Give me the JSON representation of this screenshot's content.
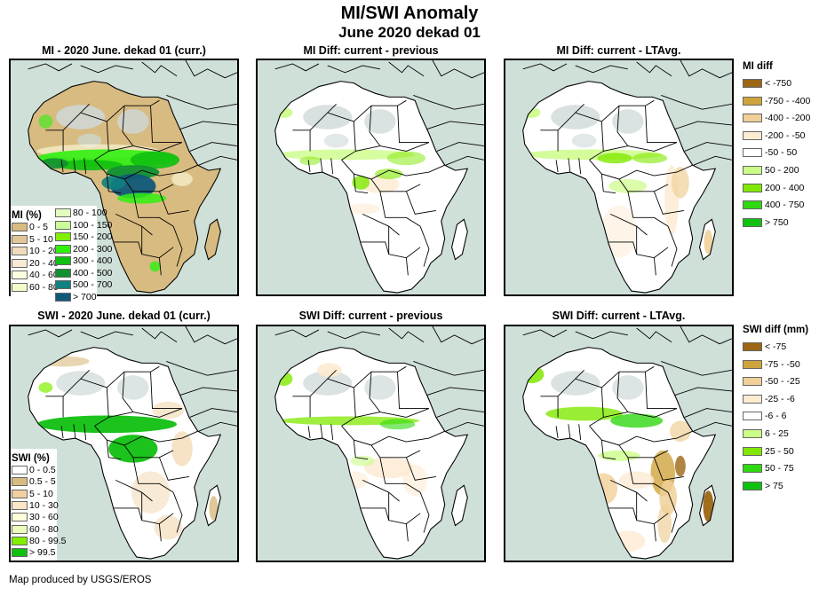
{
  "header": {
    "title": "MI/SWI Anomaly",
    "subtitle": "June 2020 dekad 01"
  },
  "panels": [
    {
      "id": "mi-current",
      "title": "MI - 2020 June. dekad 01 (curr.)",
      "variable": "MI",
      "type": "current"
    },
    {
      "id": "mi-diff-previous",
      "title": "MI Diff: current - previous",
      "variable": "MI",
      "type": "diff-previous"
    },
    {
      "id": "mi-diff-ltavg",
      "title": "MI Diff: current - LTAvg.",
      "variable": "MI",
      "type": "diff-ltavg"
    },
    {
      "id": "swi-current",
      "title": "SWI - 2020 June. dekad 01 (curr.)",
      "variable": "SWI",
      "type": "current"
    },
    {
      "id": "swi-diff-previous",
      "title": "SWI Diff: current - previous",
      "variable": "SWI",
      "type": "diff-previous"
    },
    {
      "id": "swi-diff-ltavg",
      "title": "SWI Diff: current - LTAvg.",
      "variable": "SWI",
      "type": "diff-ltavg"
    }
  ],
  "legends": {
    "mi_percent": {
      "title": "MI (%)",
      "items": [
        {
          "label": "0 - 5",
          "color": "#d8bb80"
        },
        {
          "label": "5 - 10",
          "color": "#e2c796"
        },
        {
          "label": "10 - 20",
          "color": "#f0dcbc"
        },
        {
          "label": "20 - 40",
          "color": "#f9ead6"
        },
        {
          "label": "40 - 60",
          "color": "#fdfde0"
        },
        {
          "label": "60 - 80",
          "color": "#f2fcc8"
        },
        {
          "label": "80 - 100",
          "color": "#e3fcc0"
        },
        {
          "label": "100 - 150",
          "color": "#ccfc99"
        },
        {
          "label": "150 - 200",
          "color": "#80f000"
        },
        {
          "label": "200 - 300",
          "color": "#30f010"
        },
        {
          "label": "300 - 400",
          "color": "#10c010"
        },
        {
          "label": "400 - 500",
          "color": "#109030"
        },
        {
          "label": "500 - 700",
          "color": "#108080"
        },
        {
          "label": "> 700",
          "color": "#105878"
        }
      ]
    },
    "mi_diff": {
      "title": "MI diff",
      "items": [
        {
          "label": "< -750",
          "color": "#9c6614"
        },
        {
          "label": "-750 - -400",
          "color": "#d0a43c"
        },
        {
          "label": "-400 - -200",
          "color": "#f0d098"
        },
        {
          "label": "-200 - -50",
          "color": "#fdebd2"
        },
        {
          "label": "-50 - 50",
          "color": "#ffffff"
        },
        {
          "label": "50 - 200",
          "color": "#ccfc88"
        },
        {
          "label": "200 - 400",
          "color": "#80e800"
        },
        {
          "label": "400 - 750",
          "color": "#30d810"
        },
        {
          "label": "> 750",
          "color": "#10c010"
        }
      ]
    },
    "swi_percent": {
      "title": "SWI (%)",
      "items": [
        {
          "label": "0 - 0.5",
          "color": "#ffffff"
        },
        {
          "label": "0.5 - 5",
          "color": "#d8bb80"
        },
        {
          "label": "5 - 10",
          "color": "#f0d0a0"
        },
        {
          "label": "10 - 30",
          "color": "#fce6c8"
        },
        {
          "label": "30 - 60",
          "color": "#fdfdd8"
        },
        {
          "label": "60 - 80",
          "color": "#eafcb8"
        },
        {
          "label": "80 - 99.5",
          "color": "#80f000"
        },
        {
          "label": "> 99.5",
          "color": "#10c010"
        }
      ]
    },
    "swi_diff": {
      "title": "SWI diff (mm)",
      "items": [
        {
          "label": "< -75",
          "color": "#9c6614"
        },
        {
          "label": "-75 - -50",
          "color": "#d0a43c"
        },
        {
          "label": "-50 - -25",
          "color": "#f0d098"
        },
        {
          "label": "-25 - -6",
          "color": "#fdebd2"
        },
        {
          "label": "-6 - 6",
          "color": "#ffffff"
        },
        {
          "label": "6 - 25",
          "color": "#ccfc88"
        },
        {
          "label": "25 - 50",
          "color": "#80e800"
        },
        {
          "label": "50 - 75",
          "color": "#30d810"
        },
        {
          "label": "> 75",
          "color": "#10c010"
        }
      ]
    }
  },
  "map_colors": {
    "ocean": "#cfe0d9",
    "no_data": "#cfd8d8",
    "border": "#000000"
  },
  "footer": {
    "credit": "Map produced by USGS/EROS"
  }
}
